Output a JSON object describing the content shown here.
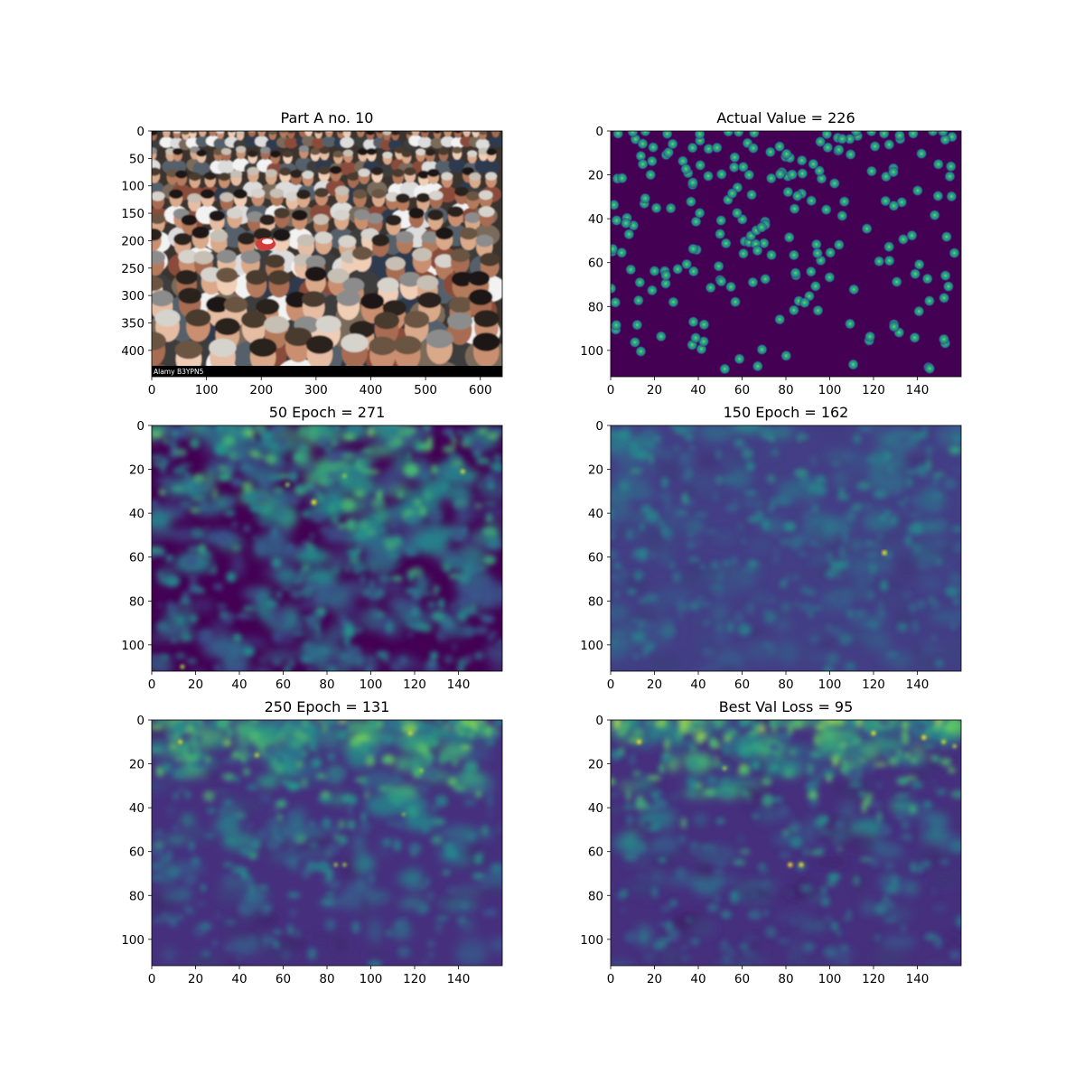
{
  "figure": {
    "background": "#ffffff"
  },
  "chart_data": [
    {
      "type": "heatmap",
      "kind": "photo",
      "title": "Part A no. 10",
      "xlim": [
        0,
        640
      ],
      "ylim": [
        448,
        0
      ],
      "xticks": [
        0,
        100,
        200,
        300,
        400,
        500,
        600
      ],
      "yticks": [
        0,
        50,
        100,
        150,
        200,
        250,
        300,
        350,
        400
      ],
      "watermark": "Alamy  B3YPN5"
    },
    {
      "type": "heatmap",
      "kind": "density",
      "title": "Actual Value = 226",
      "count": 226,
      "xlim": [
        0,
        160
      ],
      "ylim": [
        112,
        0
      ],
      "xticks": [
        0,
        20,
        40,
        60,
        80,
        100,
        120,
        140
      ],
      "yticks": [
        0,
        20,
        40,
        60,
        80,
        100
      ],
      "colormap": "viridis"
    },
    {
      "type": "heatmap",
      "kind": "density",
      "title": "50 Epoch = 271",
      "count": 271,
      "xlim": [
        0,
        160
      ],
      "ylim": [
        112,
        0
      ],
      "xticks": [
        0,
        20,
        40,
        60,
        80,
        100,
        120,
        140
      ],
      "yticks": [
        0,
        20,
        40,
        60,
        80,
        100
      ],
      "colormap": "viridis"
    },
    {
      "type": "heatmap",
      "kind": "density",
      "title": "150 Epoch = 162",
      "count": 162,
      "xlim": [
        0,
        160
      ],
      "ylim": [
        112,
        0
      ],
      "xticks": [
        0,
        20,
        40,
        60,
        80,
        100,
        120,
        140
      ],
      "yticks": [
        0,
        20,
        40,
        60,
        80,
        100
      ],
      "colormap": "viridis"
    },
    {
      "type": "heatmap",
      "kind": "density",
      "title": "250 Epoch = 131",
      "count": 131,
      "xlim": [
        0,
        160
      ],
      "ylim": [
        112,
        0
      ],
      "xticks": [
        0,
        20,
        40,
        60,
        80,
        100,
        120,
        140
      ],
      "yticks": [
        0,
        20,
        40,
        60,
        80,
        100
      ],
      "colormap": "viridis"
    },
    {
      "type": "heatmap",
      "kind": "density",
      "title": "Best Val Loss = 95",
      "count": 95,
      "xlim": [
        0,
        160
      ],
      "ylim": [
        112,
        0
      ],
      "xticks": [
        0,
        20,
        40,
        60,
        80,
        100,
        120,
        140
      ],
      "yticks": [
        0,
        20,
        40,
        60,
        80,
        100
      ],
      "colormap": "viridis"
    }
  ]
}
